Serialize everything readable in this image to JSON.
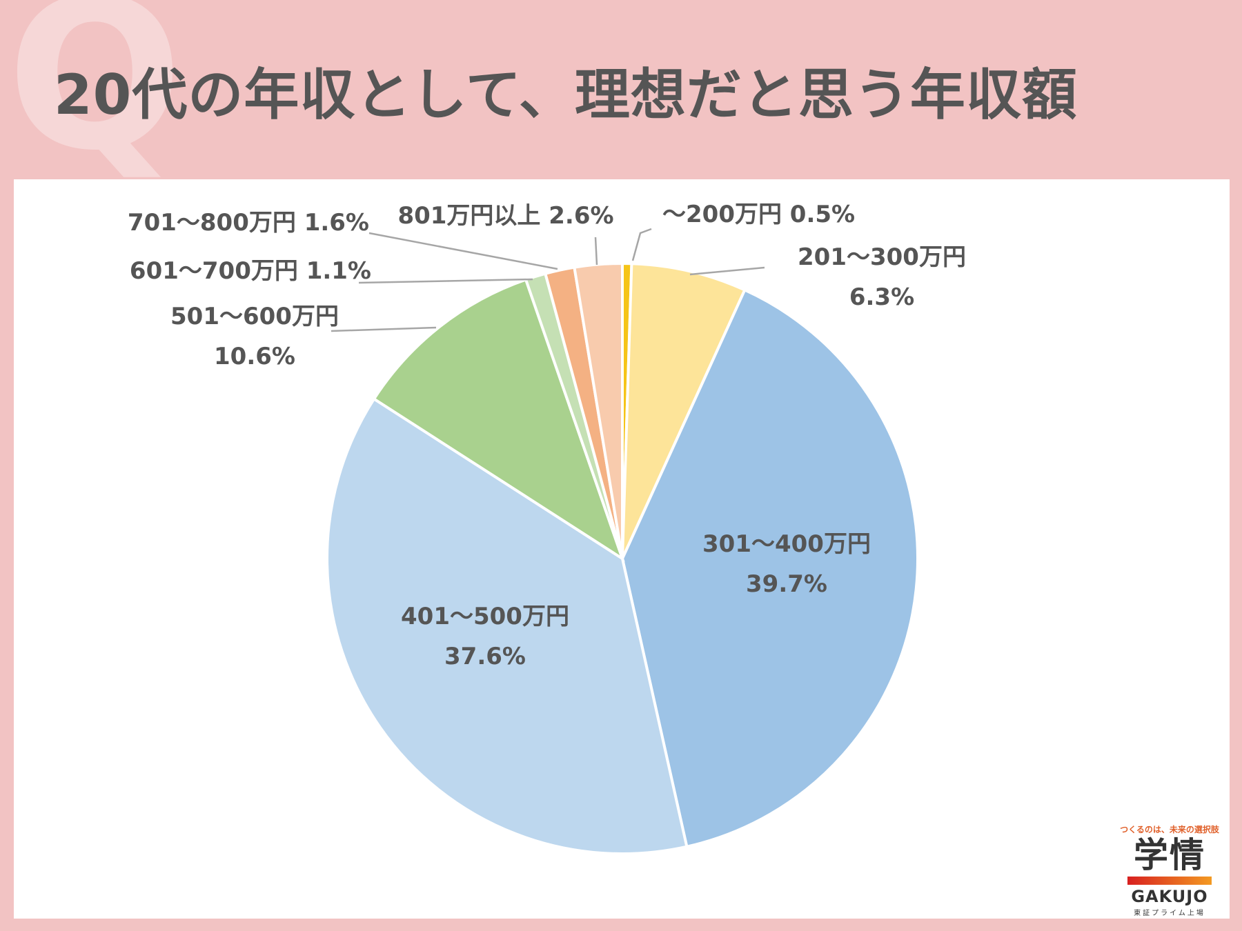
{
  "title": "20代の年収として、理想だと思う年収額",
  "watermark": "Q",
  "chart_data": {
    "type": "pie",
    "title": "20代の年収として、理想だと思う年収額",
    "unit": "%",
    "slices": [
      {
        "name": "～200万円",
        "value": 0.5,
        "color": "#f5c418",
        "label": [
          "～200万円 0.5%"
        ]
      },
      {
        "name": "201～300万円",
        "value": 6.3,
        "color": "#fde499",
        "label": [
          "201～300万円",
          "6.3%"
        ]
      },
      {
        "name": "301～400万円",
        "value": 39.7,
        "color": "#9dc3e6",
        "label": [
          "301～400万円",
          "39.7%"
        ]
      },
      {
        "name": "401～500万円",
        "value": 37.6,
        "color": "#bdd7ee",
        "label": [
          "401～500万円",
          "37.6%"
        ]
      },
      {
        "name": "501～600万円",
        "value": 10.6,
        "color": "#a9d18e",
        "label": [
          "501～600万円",
          "10.6%"
        ]
      },
      {
        "name": "601～700万円",
        "value": 1.1,
        "color": "#c5e0b4",
        "label": [
          "601～700万円 1.1%"
        ]
      },
      {
        "name": "701～800万円",
        "value": 1.6,
        "color": "#f4b183",
        "label": [
          "701～800万円 1.6%"
        ]
      },
      {
        "name": "801万円以上",
        "value": 2.6,
        "color": "#f8cbad",
        "label": [
          "801万円以上 2.6%"
        ]
      }
    ]
  },
  "logo": {
    "tagline": "つくるのは、未来の選択肢",
    "kanji": "学情",
    "name": "GAKUJO",
    "sub": "東証プライム上場"
  }
}
